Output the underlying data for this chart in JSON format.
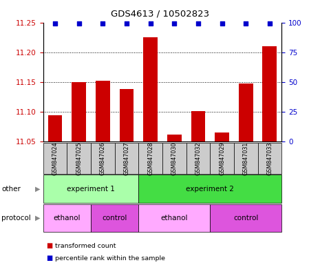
{
  "title": "GDS4613 / 10502823",
  "samples": [
    "GSM847024",
    "GSM847025",
    "GSM847026",
    "GSM847027",
    "GSM847028",
    "GSM847030",
    "GSM847032",
    "GSM847029",
    "GSM847031",
    "GSM847033"
  ],
  "bar_values": [
    11.095,
    11.15,
    11.152,
    11.138,
    11.225,
    11.062,
    11.101,
    11.065,
    11.148,
    11.21
  ],
  "percentile_values": [
    99,
    99,
    99,
    99,
    99,
    99,
    99,
    99,
    99,
    99
  ],
  "ylim_left": [
    11.05,
    11.25
  ],
  "ylim_right": [
    0,
    100
  ],
  "yticks_left": [
    11.05,
    11.1,
    11.15,
    11.2,
    11.25
  ],
  "yticks_right": [
    0,
    25,
    50,
    75,
    100
  ],
  "bar_color": "#cc0000",
  "dot_color": "#0000cc",
  "bar_width": 0.6,
  "grid_color": "#000000",
  "other_row": [
    {
      "label": "experiment 1",
      "start": 0,
      "end": 4,
      "color": "#aaffaa"
    },
    {
      "label": "experiment 2",
      "start": 4,
      "end": 10,
      "color": "#44dd44"
    }
  ],
  "protocol_row": [
    {
      "label": "ethanol",
      "start": 0,
      "end": 2,
      "color": "#ffaaff"
    },
    {
      "label": "control",
      "start": 2,
      "end": 4,
      "color": "#dd55dd"
    },
    {
      "label": "ethanol",
      "start": 4,
      "end": 7,
      "color": "#ffaaff"
    },
    {
      "label": "control",
      "start": 7,
      "end": 10,
      "color": "#dd55dd"
    }
  ],
  "tick_bg_color": "#cccccc",
  "legend_items": [
    {
      "label": "transformed count",
      "color": "#cc0000"
    },
    {
      "label": "percentile rank within the sample",
      "color": "#0000cc"
    }
  ],
  "other_label": "other",
  "protocol_label": "protocol"
}
